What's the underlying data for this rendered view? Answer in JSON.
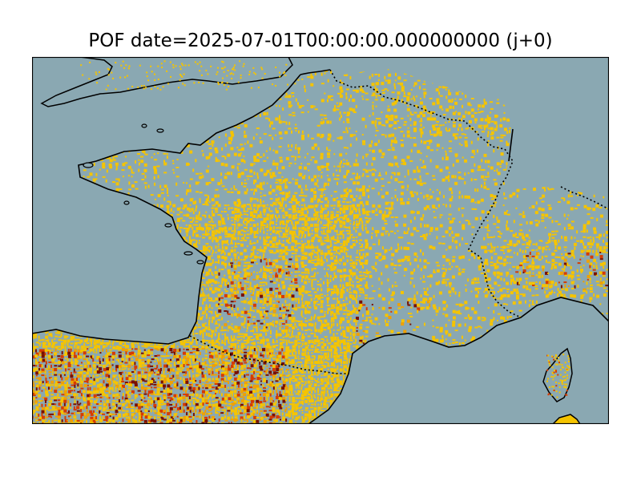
{
  "title": "POF date=2025-07-01T00:00:00.000000000 (j+0)",
  "colors": {
    "sea": "#8aa8b2",
    "land_low": "#8aa8b2",
    "risk_yellow": "#f5c400",
    "risk_orange": "#f0a000",
    "risk_red": "#d63b00",
    "risk_darkred": "#7a1000",
    "coastline": "#000000",
    "border": "#000000"
  }
}
